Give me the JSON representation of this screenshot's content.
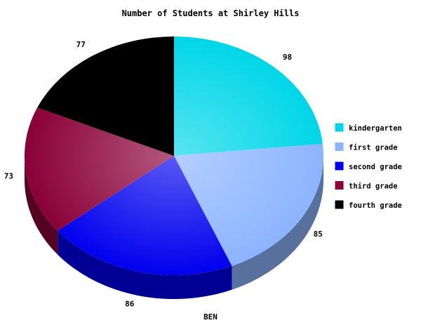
{
  "chart_data": {
    "type": "pie",
    "title": "Number of Students at Shirley Hills",
    "xlabel": "BEN",
    "categories": [
      "kindergarten",
      "first grade",
      "second grade",
      "third grade",
      "fourth grade"
    ],
    "values": [
      98,
      85,
      86,
      73,
      77
    ],
    "colors": [
      "#00d6e8",
      "#8cb4ff",
      "#0000ee",
      "#8a0038",
      "#000000"
    ],
    "legend_position": "right",
    "style": "3d"
  }
}
